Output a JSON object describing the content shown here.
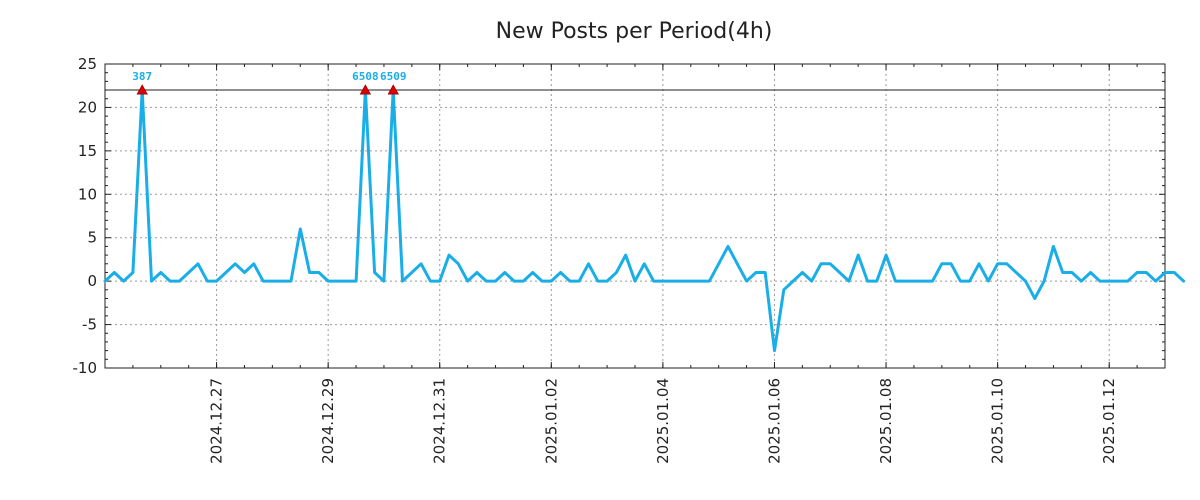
{
  "chart_data": {
    "type": "line",
    "title": "New Posts per Period(4h)",
    "xlabel": "",
    "ylabel": "",
    "ylim": [
      -10,
      25
    ],
    "yticks": [
      -10,
      -5,
      0,
      5,
      10,
      15,
      20,
      25
    ],
    "ytick_labels": [
      "-10",
      "-5",
      "0",
      "5",
      "10",
      "15",
      "20",
      "25"
    ],
    "xlim": [
      0,
      114
    ],
    "xticks": [
      {
        "x": 12,
        "label": "2024.12.27"
      },
      {
        "x": 24,
        "label": "2024.12.29"
      },
      {
        "x": 36,
        "label": "2024.12.31"
      },
      {
        "x": 48,
        "label": "2025.01.02"
      },
      {
        "x": 60,
        "label": "2025.01.04"
      },
      {
        "x": 72,
        "label": "2025.01.06"
      },
      {
        "x": 84,
        "label": "2025.01.08"
      },
      {
        "x": 96,
        "label": "2025.01.10"
      },
      {
        "x": 108,
        "label": "2025.01.12"
      }
    ],
    "grid": true,
    "clip_level": 22,
    "series": [
      {
        "name": "New Posts",
        "color": "#1aaee8",
        "values": [
          0,
          1,
          0,
          1,
          22,
          0,
          1,
          0,
          0,
          1,
          2,
          0,
          0,
          1,
          2,
          1,
          2,
          0,
          0,
          0,
          0,
          6,
          1,
          1,
          0,
          0,
          0,
          0,
          22,
          1,
          0,
          22,
          0,
          1,
          2,
          0,
          0,
          3,
          2,
          0,
          1,
          0,
          0,
          1,
          0,
          0,
          1,
          0,
          0,
          1,
          0,
          0,
          2,
          0,
          0,
          1,
          3,
          0,
          2,
          0,
          0,
          0,
          0,
          0,
          0,
          0,
          2,
          4,
          2,
          0,
          1,
          1,
          -8,
          -1,
          0,
          1,
          0,
          2,
          2,
          1,
          0,
          3,
          0,
          0,
          3,
          0,
          0,
          0,
          0,
          0,
          2,
          2,
          0,
          0,
          2,
          0,
          2,
          2,
          1,
          0,
          -2,
          0,
          4,
          1,
          1,
          0,
          1,
          0,
          0,
          0,
          0,
          1,
          1,
          0,
          1,
          1,
          0
        ]
      }
    ],
    "annotations": [
      {
        "x": 4,
        "y": 22,
        "label": "387"
      },
      {
        "x": 28,
        "y": 22,
        "label": "6508"
      },
      {
        "x": 31,
        "y": 22,
        "label": "6509"
      }
    ],
    "colors": {
      "line": "#1aaee8",
      "marker": "#e00000",
      "annotation_text": "#1aaee8",
      "grid": "#9a9a9a",
      "axis": "#222222"
    }
  }
}
